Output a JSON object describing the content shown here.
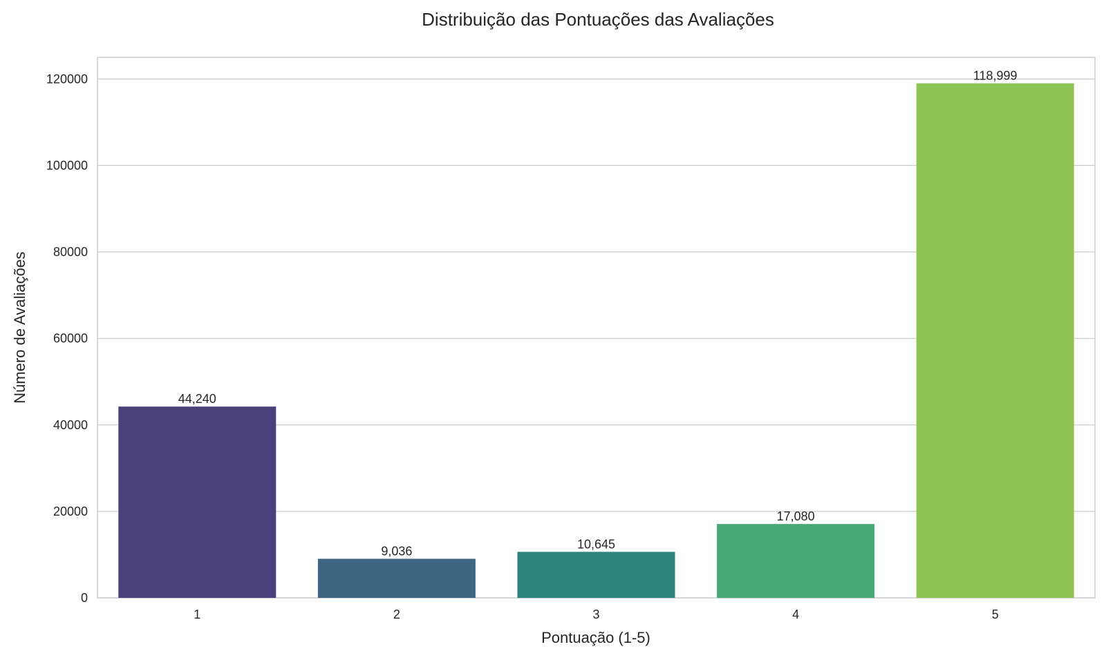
{
  "chart_data": {
    "type": "bar",
    "title": "Distribuição das Pontuações das Avaliações",
    "xlabel": "Pontuação (1-5)",
    "ylabel": "Número de Avaliações",
    "categories": [
      "1",
      "2",
      "3",
      "4",
      "5"
    ],
    "values": [
      44240,
      9036,
      10645,
      17080,
      118999
    ],
    "data_labels": [
      "44,240",
      "9,036",
      "10,645",
      "17,080",
      "118,999"
    ],
    "colors": [
      "#4b417a",
      "#3e6683",
      "#2e8380",
      "#47a878",
      "#8ec454"
    ],
    "ylim": [
      0,
      125000
    ],
    "yticks": [
      0,
      20000,
      40000,
      60000,
      80000,
      100000,
      120000
    ],
    "ytick_labels": [
      "0",
      "20000",
      "40000",
      "60000",
      "80000",
      "100000",
      "120000"
    ],
    "grid": "horizontal",
    "legend": "none"
  }
}
